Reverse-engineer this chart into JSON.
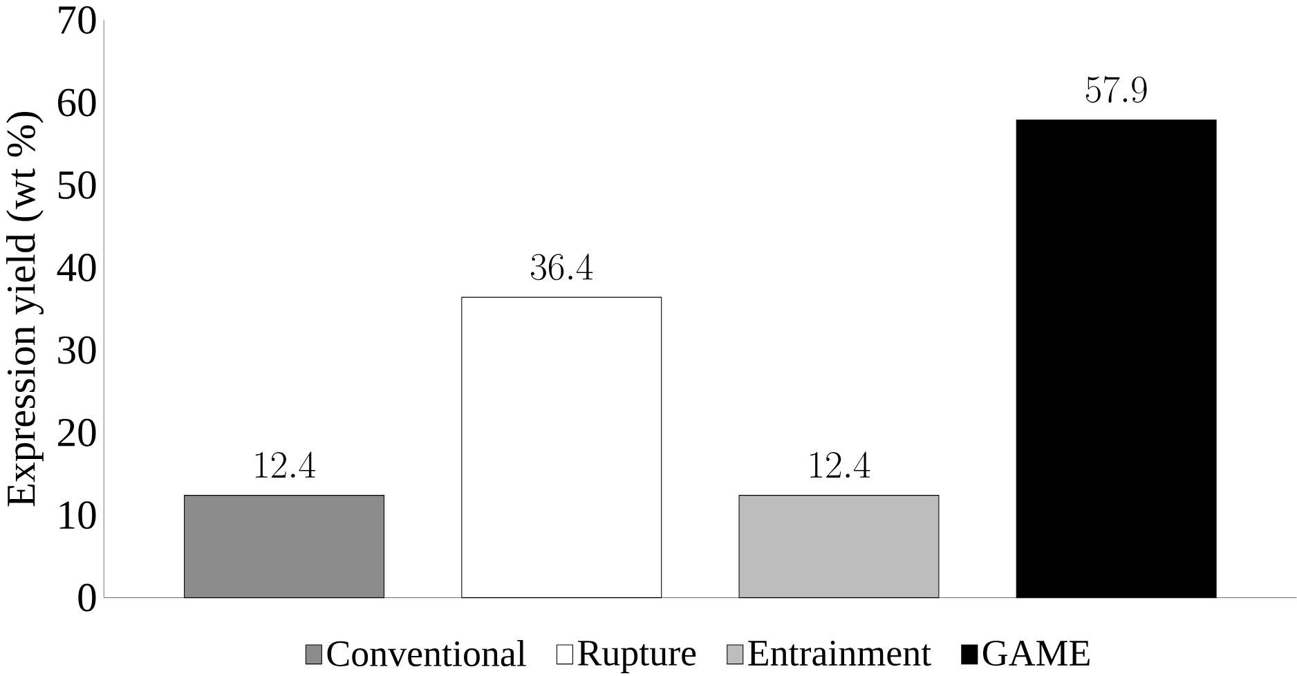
{
  "chart_data": {
    "type": "bar",
    "ylabel": "Expression yield (wt %)",
    "categories": [
      null,
      null,
      null,
      null
    ],
    "series": [
      {
        "name": "Conventional",
        "color": "#8c8c8c",
        "values": [
          12.4,
          null,
          null,
          null
        ]
      },
      {
        "name": "Rupture",
        "color": "#ffffff",
        "values": [
          null,
          36.4,
          null,
          null
        ]
      },
      {
        "name": "Entrainment",
        "color": "#bdbdbd",
        "values": [
          null,
          null,
          12.4,
          null
        ]
      },
      {
        "name": "GAME",
        "color": "#000000",
        "values": [
          null,
          null,
          null,
          57.9
        ]
      }
    ],
    "ylim": [
      0,
      70
    ],
    "yticks": [
      0,
      10,
      20,
      30,
      40,
      50,
      60,
      70
    ],
    "data_labels": true,
    "legend": "bottom"
  }
}
